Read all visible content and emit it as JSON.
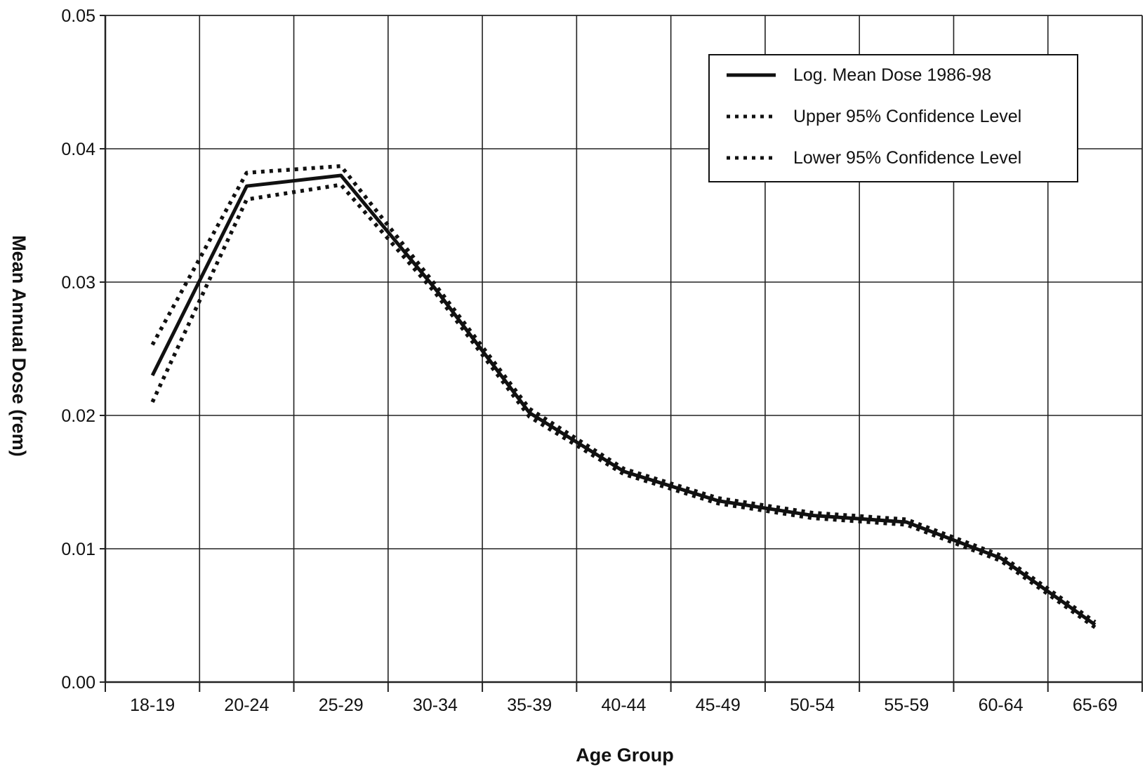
{
  "chart_data": {
    "type": "line",
    "xlabel": "Age Group",
    "ylabel": "Mean Annual Dose (rem)",
    "categories": [
      "18-19",
      "20-24",
      "25-29",
      "30-34",
      "35-39",
      "40-44",
      "45-49",
      "50-54",
      "55-59",
      "60-64",
      "65-69"
    ],
    "ylim": [
      0,
      0.05
    ],
    "yticks": [
      "0.00",
      "0.01",
      "0.02",
      "0.03",
      "0.04",
      "0.05"
    ],
    "grid": true,
    "legend_position": "top-right",
    "series": [
      {
        "name": "Log. Mean Dose 1986-98",
        "style": "solid",
        "values": [
          0.023,
          0.0372,
          0.038,
          0.0295,
          0.0202,
          0.0158,
          0.0136,
          0.0125,
          0.012,
          0.0093,
          0.0043
        ]
      },
      {
        "name": "Upper 95% Confidence Level",
        "style": "dotted",
        "values": [
          0.0253,
          0.0382,
          0.0387,
          0.0298,
          0.0205,
          0.016,
          0.0138,
          0.0127,
          0.0122,
          0.0095,
          0.0045
        ]
      },
      {
        "name": "Lower 95% Confidence Level",
        "style": "dotted",
        "values": [
          0.021,
          0.0362,
          0.0373,
          0.0292,
          0.0199,
          0.0156,
          0.0134,
          0.0123,
          0.0118,
          0.0091,
          0.0041
        ]
      }
    ]
  },
  "colors": {
    "line": "#111111",
    "grid": "#222222",
    "background": "#ffffff"
  }
}
